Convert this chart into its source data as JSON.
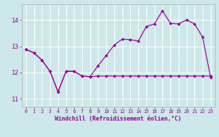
{
  "xlabel": "Windchill (Refroidissement éolien,°C)",
  "bg_color": "#cce8e8",
  "line_color": "#990099",
  "grid_color": "#ffffff",
  "x_ticks": [
    0,
    1,
    2,
    3,
    4,
    5,
    6,
    7,
    8,
    9,
    10,
    11,
    12,
    13,
    14,
    15,
    16,
    17,
    18,
    19,
    20,
    21,
    22,
    23
  ],
  "y_ticks": [
    11,
    12,
    13,
    14
  ],
  "ylim": [
    10.7,
    14.6
  ],
  "xlim": [
    -0.5,
    23.5
  ],
  "series1_y": [
    12.88,
    12.75,
    12.47,
    12.05,
    11.27,
    12.05,
    12.05,
    11.87,
    11.85,
    11.87,
    11.87,
    11.87,
    11.87,
    11.87,
    11.87,
    11.87,
    11.87,
    11.87,
    11.87,
    11.87,
    11.87,
    11.87,
    11.87,
    11.87
  ],
  "series2_y": [
    12.88,
    12.75,
    12.47,
    12.05,
    11.27,
    12.05,
    12.05,
    11.87,
    11.85,
    12.27,
    12.65,
    13.05,
    13.27,
    13.25,
    13.2,
    13.75,
    13.85,
    14.35,
    13.87,
    13.85,
    14.0,
    13.85,
    13.35,
    11.82
  ]
}
